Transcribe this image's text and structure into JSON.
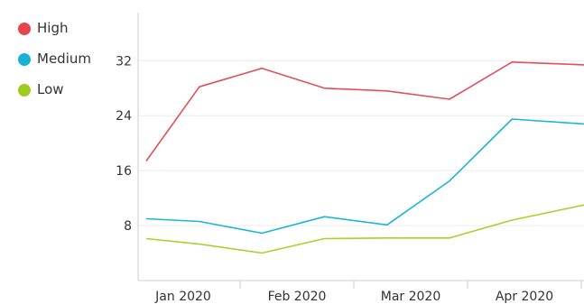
{
  "chart_data": {
    "type": "line",
    "categories": [
      "Jan 2020",
      "Feb 2020",
      "Mar 2020",
      "Apr 2020"
    ],
    "x": [
      0,
      0.85,
      1.85,
      2.85,
      3.85,
      4.85,
      5.85,
      7
    ],
    "series": [
      {
        "name": "High",
        "color": "#e0505c",
        "values": [
          17.4,
          28.2,
          30.9,
          28.0,
          27.6,
          26.4,
          31.8,
          31.4
        ]
      },
      {
        "name": "Medium",
        "color": "#1eb4d6",
        "values": [
          9.0,
          8.6,
          6.9,
          9.3,
          8.1,
          14.5,
          23.5,
          22.8
        ]
      },
      {
        "name": "Low",
        "color": "#a6d22b",
        "values": [
          6.1,
          5.3,
          4.0,
          6.1,
          6.2,
          6.2,
          8.8,
          11.0
        ]
      }
    ],
    "yticks": [
      8,
      16,
      24,
      32
    ],
    "ylim": [
      0,
      39
    ],
    "grid": true,
    "legend_position": "top-left"
  }
}
